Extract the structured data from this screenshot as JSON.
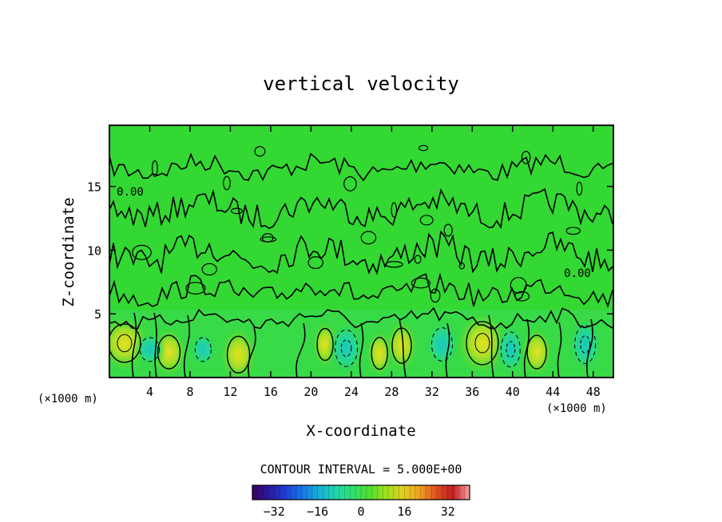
{
  "chart_data": {
    "type": "heatmap",
    "title": "vertical velocity",
    "xlabel": "X-coordinate",
    "ylabel": "Z-coordinate",
    "x_unit_left": "(×1000 m)",
    "x_unit_right": "(×1000 m)",
    "xlim": [
      0,
      50
    ],
    "ylim": [
      0,
      19.8
    ],
    "x_ticks": [
      4,
      8,
      12,
      16,
      20,
      24,
      28,
      32,
      36,
      40,
      44,
      48
    ],
    "y_ticks": [
      5,
      10,
      15
    ],
    "contour_interval_text": "CONTOUR INTERVAL = 5.000E+00",
    "contour_labels": [
      "0.00",
      "0.00"
    ],
    "colorbar": {
      "range": [
        -40,
        40
      ],
      "ticks": [
        -32,
        -16,
        0,
        16,
        32
      ],
      "colors": [
        "#3a0060",
        "#2a1aa0",
        "#1e40d8",
        "#1a78e8",
        "#18b0d8",
        "#20d8a8",
        "#30e070",
        "#50e030",
        "#a0e020",
        "#e0d020",
        "#f0a020",
        "#e05020",
        "#c02020",
        "#ffa0a0"
      ]
    },
    "base_field_color": "#33d833",
    "cells": [
      {
        "x": 1.5,
        "z": 2.7,
        "w": 0.28,
        "type": "pos",
        "value": 10
      },
      {
        "x": 5.9,
        "z": 2.0,
        "w": 0.24,
        "type": "pos",
        "value": 5
      },
      {
        "x": 4.0,
        "z": 2.2,
        "w": 0.18,
        "type": "neg",
        "value": -5
      },
      {
        "x": 9.3,
        "z": 2.2,
        "w": 0.16,
        "type": "neg",
        "value": -5
      },
      {
        "x": 12.8,
        "z": 1.8,
        "w": 0.26,
        "type": "pos",
        "value": 5
      },
      {
        "x": 21.4,
        "z": 2.6,
        "w": 0.18,
        "type": "pos",
        "value": 5
      },
      {
        "x": 23.5,
        "z": 2.3,
        "w": 0.22,
        "type": "neg",
        "value": -15
      },
      {
        "x": 26.8,
        "z": 1.9,
        "w": 0.18,
        "type": "pos",
        "value": 5
      },
      {
        "x": 29.0,
        "z": 2.5,
        "w": 0.2,
        "type": "pos",
        "value": 5
      },
      {
        "x": 33.0,
        "z": 2.6,
        "w": 0.22,
        "type": "neg",
        "value": -5
      },
      {
        "x": 37.0,
        "z": 2.7,
        "w": 0.28,
        "type": "pos",
        "value": 10
      },
      {
        "x": 39.8,
        "z": 2.2,
        "w": 0.2,
        "type": "neg",
        "value": -10
      },
      {
        "x": 42.4,
        "z": 2.0,
        "w": 0.2,
        "type": "pos",
        "value": 5
      },
      {
        "x": 47.2,
        "z": 2.6,
        "w": 0.22,
        "type": "neg",
        "value": -10
      }
    ]
  }
}
